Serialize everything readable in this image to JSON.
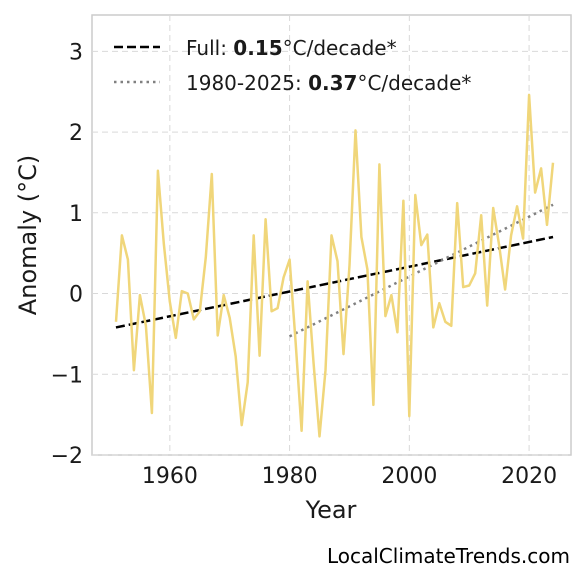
{
  "chart_data": {
    "type": "line",
    "xlabel": "Year",
    "ylabel": "Anomaly (°C)",
    "xlim": [
      1947,
      2027
    ],
    "ylim": [
      -2.0,
      3.45
    ],
    "xticks": [
      1960,
      1980,
      2000,
      2020
    ],
    "yticks": [
      -2,
      -1,
      0,
      1,
      2,
      3
    ],
    "ytick_labels": [
      "−2",
      "−1",
      "0",
      "1",
      "2",
      "3"
    ],
    "grid": true,
    "legend_position": "top-left",
    "legend": [
      {
        "prefix": "Full: ",
        "value": "0.15",
        "suffix": "°C/decade*",
        "style": "dashed",
        "color": "#000000"
      },
      {
        "prefix": "1980-2025: ",
        "value": "0.37",
        "suffix": "°C/decade*",
        "style": "dotted",
        "color": "#808080"
      }
    ],
    "series": [
      {
        "color": "#f0d67a",
        "x": [
          1951,
          1952,
          1953,
          1954,
          1955,
          1956,
          1957,
          1958,
          1959,
          1960,
          1961,
          1962,
          1963,
          1964,
          1965,
          1966,
          1967,
          1968,
          1969,
          1970,
          1971,
          1972,
          1973,
          1974,
          1975,
          1976,
          1977,
          1978,
          1979,
          1980,
          1981,
          1982,
          1983,
          1984,
          1985,
          1986,
          1987,
          1988,
          1989,
          1990,
          1991,
          1992,
          1993,
          1994,
          1995,
          1996,
          1997,
          1998,
          1999,
          2000,
          2001,
          2002,
          2003,
          2004,
          2005,
          2006,
          2007,
          2008,
          2009,
          2010,
          2011,
          2012,
          2013,
          2014,
          2015,
          2016,
          2017,
          2018,
          2019,
          2020,
          2021,
          2022,
          2023,
          2024
        ],
        "y": [
          -0.35,
          0.72,
          0.42,
          -0.95,
          -0.02,
          -0.4,
          -1.48,
          1.52,
          0.62,
          -0.1,
          -0.55,
          0.03,
          0.0,
          -0.32,
          -0.22,
          0.45,
          1.48,
          -0.52,
          -0.02,
          -0.3,
          -0.78,
          -1.63,
          -1.1,
          0.72,
          -0.77,
          0.92,
          -0.22,
          -0.18,
          0.2,
          0.42,
          -0.6,
          -1.7,
          0.15,
          -0.85,
          -1.77,
          -0.95,
          0.72,
          0.4,
          -0.75,
          0.35,
          2.02,
          0.7,
          0.3,
          -1.38,
          1.6,
          -0.28,
          -0.02,
          -0.48,
          1.15,
          -1.52,
          1.22,
          0.6,
          0.73,
          -0.42,
          -0.12,
          -0.35,
          -0.4,
          1.12,
          0.08,
          0.1,
          0.25,
          0.97,
          -0.15,
          1.06,
          0.6,
          0.05,
          0.72,
          1.08,
          0.68,
          2.46,
          1.25,
          1.55,
          0.85,
          1.62
        ]
      }
    ],
    "trends": [
      {
        "style": "dashed",
        "color": "#000000",
        "x": [
          1951,
          2024
        ],
        "y": [
          -0.42,
          0.7
        ]
      },
      {
        "style": "dotted",
        "color": "#808080",
        "x": [
          1980,
          2024
        ],
        "y": [
          -0.53,
          1.1
        ]
      }
    ]
  },
  "credit": "LocalClimateTrends.com"
}
